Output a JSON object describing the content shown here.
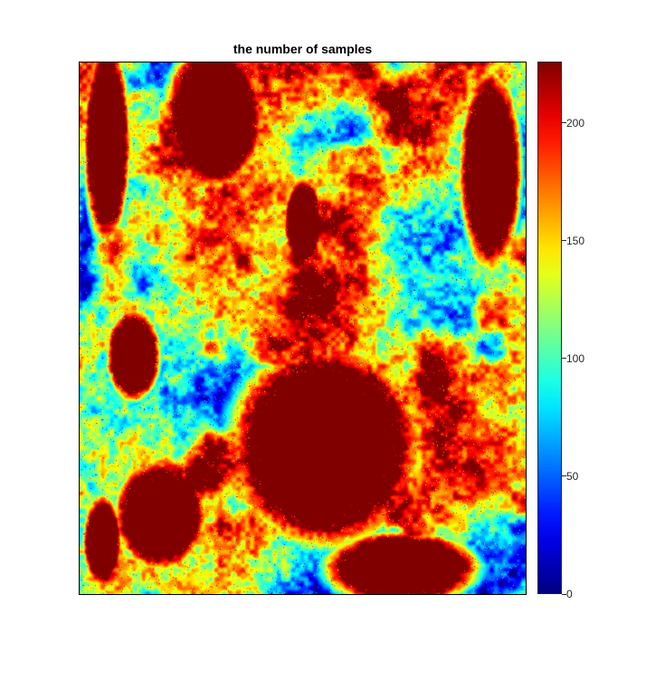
{
  "chart_data": {
    "type": "heatmap",
    "title": "the number of samples",
    "xlabel": "",
    "ylabel": "",
    "colormap": "jet",
    "clim": [
      0,
      226
    ],
    "colorbar": {
      "ticks": [
        0,
        50,
        100,
        150,
        200
      ],
      "tick_labels": [
        "0",
        "50",
        "100",
        "150",
        "200"
      ],
      "location": "right"
    },
    "grid": false,
    "axes_visible": false,
    "description_values": {
      "max_value": 226,
      "min_value": 0
    }
  },
  "colors": {
    "background": "#ffffff",
    "jet_low": "#00008f",
    "jet_mid": "#7fff7f",
    "jet_high": "#800000"
  }
}
